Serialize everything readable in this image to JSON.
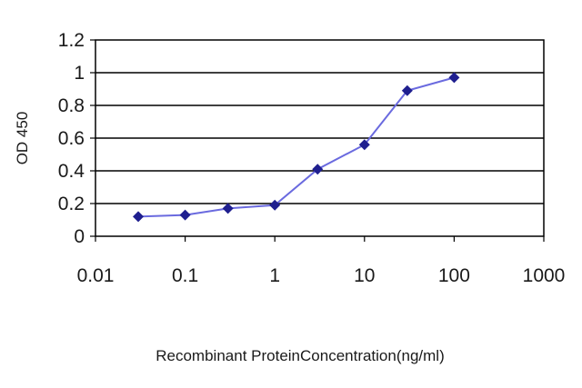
{
  "chart_data": {
    "type": "line",
    "title": "",
    "xlabel": "Recombinant ProteinConcentration(ng/ml)",
    "ylabel": "OD 450",
    "x_scale": "log",
    "xlim": [
      0.01,
      1000
    ],
    "ylim": [
      0,
      1.2
    ],
    "x_ticks": [
      "0.01",
      "0.1",
      "1",
      "10",
      "100",
      "1000"
    ],
    "y_ticks": [
      "0",
      "0.2",
      "0.4",
      "0.6",
      "0.8",
      "1",
      "1.2"
    ],
    "grid": "horizontal",
    "legend": "none",
    "series_color": "#1f1f8f",
    "line_color": "#6a6adf",
    "series": [
      {
        "x": [
          0.03,
          0.1,
          0.3,
          1,
          3,
          10,
          30,
          100
        ],
        "y": [
          0.12,
          0.13,
          0.17,
          0.19,
          0.41,
          0.56,
          0.89,
          0.97
        ]
      }
    ]
  }
}
